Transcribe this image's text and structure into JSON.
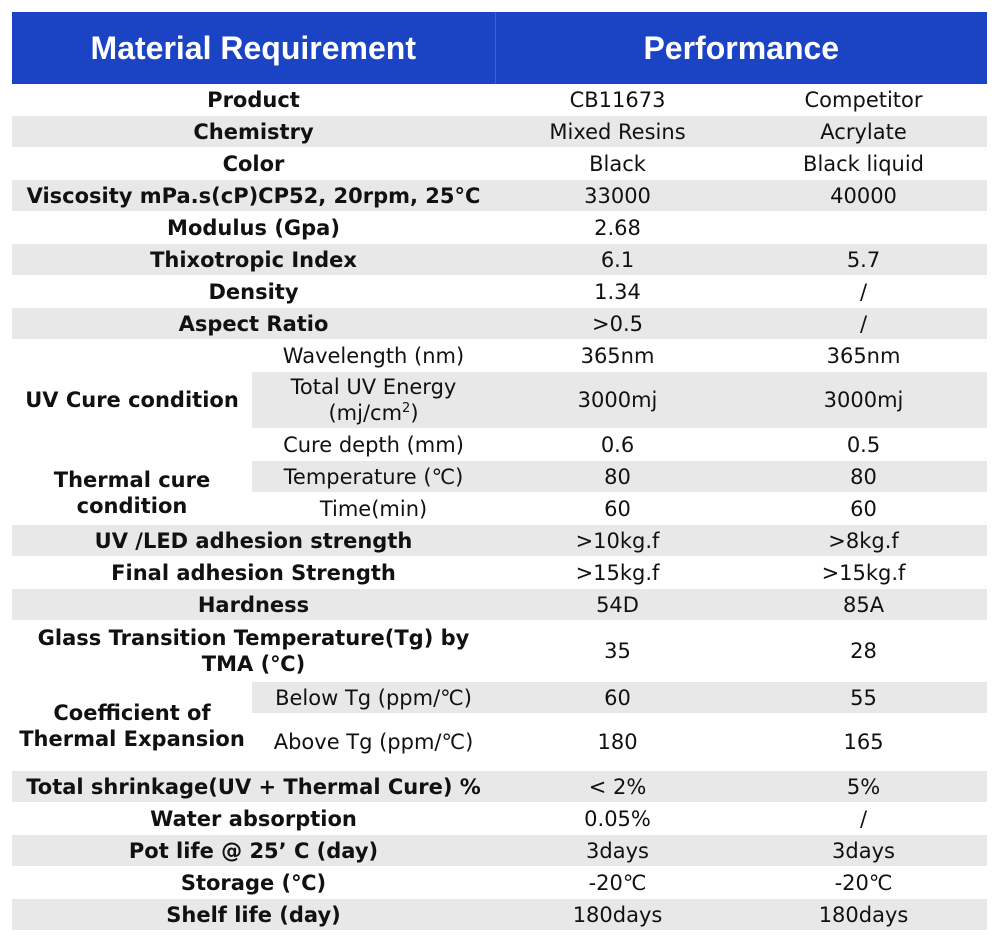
{
  "header": {
    "col1": "Material Requirement",
    "col2": "Performance"
  },
  "rows": {
    "product": {
      "label": "Product",
      "a": "CB11673",
      "b": "Competitor"
    },
    "chemistry": {
      "label": "Chemistry",
      "a": "Mixed Resins",
      "b": "Acrylate"
    },
    "color": {
      "label": "Color",
      "a": "Black",
      "b": "Black liquid"
    },
    "viscosity": {
      "label": "Viscosity mPa.s(cP)CP52, 20rpm, 25°C",
      "a": "33000",
      "b": "40000"
    },
    "modulus": {
      "label": "Modulus (Gpa)",
      "a": "2.68",
      "b": ""
    },
    "thixo": {
      "label": "Thixotropic Index",
      "a": "6.1",
      "b": "5.7"
    },
    "density": {
      "label": "Density",
      "a": "1.34",
      "b": "/"
    },
    "aspect": {
      "label": "Aspect Ratio",
      "a": ">0.5",
      "b": "/"
    },
    "uv": {
      "label": "UV Cure condition",
      "wavelength": {
        "label": "Wavelength (nm)",
        "a": "365nm",
        "b": "365nm"
      },
      "energy": {
        "label": "Total UV Energy (mj/cm",
        "sup": "2",
        "label_end": ")",
        "a": "3000mj",
        "b": "3000mj"
      },
      "depth": {
        "label": "Cure depth (mm)",
        "a": "0.6",
        "b": "0.5"
      }
    },
    "thermal": {
      "label": "Thermal cure condition",
      "temp": {
        "label": "Temperature (℃)",
        "a": "80",
        "b": "80"
      },
      "time": {
        "label": "Time(min)",
        "a": "60",
        "b": "60"
      }
    },
    "uv_adhesion": {
      "label": "UV /LED adhesion strength",
      "a": ">10kg.f",
      "b": ">8kg.f"
    },
    "final_adhesion": {
      "label": "Final adhesion Strength",
      "a": ">15kg.f",
      "b": ">15kg.f"
    },
    "hardness": {
      "label": "Hardness",
      "a": "54D",
      "b": "85A"
    },
    "tg": {
      "label": "Glass Transition Temperature(Tg) by TMA (℃)",
      "a": "35",
      "b": "28"
    },
    "cte": {
      "label": "Coefficient of Thermal Expansion",
      "below": {
        "label": "Below Tg (ppm/℃)",
        "a": "60",
        "b": "55"
      },
      "above": {
        "label": "Above Tg (ppm/℃)",
        "a": "180",
        "b": "165"
      }
    },
    "shrinkage": {
      "label": "Total shrinkage(UV + Thermal Cure) %",
      "a": "< 2%",
      "b": "5%"
    },
    "water": {
      "label": "Water absorption",
      "a": "0.05%",
      "b": "/"
    },
    "potlife": {
      "label": "Pot life @ 25’ C (day)",
      "a": "3days",
      "b": "3days"
    },
    "storage": {
      "label": "Storage (℃)",
      "a": "-20℃",
      "b": "-20℃"
    },
    "shelf": {
      "label": "Shelf life (day)",
      "a": "180days",
      "b": "180days"
    }
  },
  "colors": {
    "header_bg": "#1a44c4",
    "header_text": "#ffffff",
    "stripe": "#e8e8e8"
  }
}
